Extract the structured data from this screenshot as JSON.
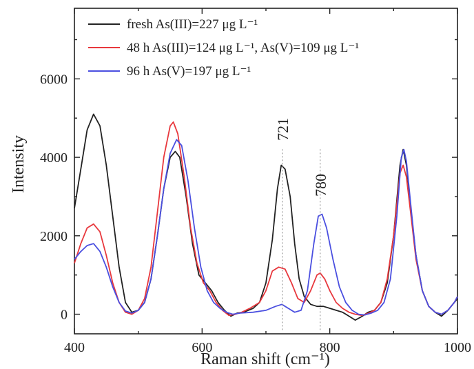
{
  "chart_data": {
    "type": "line",
    "xlabel": "Raman shift (cm⁻¹)",
    "ylabel": "Intensity",
    "xlim": [
      400,
      1000
    ],
    "ylim": [
      -500,
      7800
    ],
    "xticks": [
      400,
      600,
      800,
      1000
    ],
    "yticks": [
      0,
      2000,
      4000,
      6000
    ],
    "grid": false,
    "legend_position": "top-left",
    "annotations": [
      {
        "text": "721",
        "x": 726
      },
      {
        "text": "780",
        "x": 785
      }
    ],
    "series": [
      {
        "name": "fresh As(III)=227 μg L⁻¹",
        "color": "#222222",
        "points": [
          [
            400,
            2700
          ],
          [
            410,
            3700
          ],
          [
            420,
            4700
          ],
          [
            430,
            5100
          ],
          [
            440,
            4800
          ],
          [
            450,
            3800
          ],
          [
            460,
            2500
          ],
          [
            470,
            1200
          ],
          [
            480,
            300
          ],
          [
            490,
            50
          ],
          [
            500,
            100
          ],
          [
            510,
            300
          ],
          [
            520,
            900
          ],
          [
            530,
            2000
          ],
          [
            540,
            3200
          ],
          [
            550,
            4000
          ],
          [
            558,
            4150
          ],
          [
            565,
            4000
          ],
          [
            575,
            3000
          ],
          [
            585,
            1800
          ],
          [
            595,
            1000
          ],
          [
            605,
            800
          ],
          [
            615,
            600
          ],
          [
            625,
            300
          ],
          [
            635,
            100
          ],
          [
            645,
            -50
          ],
          [
            655,
            30
          ],
          [
            665,
            50
          ],
          [
            680,
            150
          ],
          [
            690,
            300
          ],
          [
            700,
            800
          ],
          [
            710,
            1900
          ],
          [
            718,
            3200
          ],
          [
            724,
            3800
          ],
          [
            730,
            3700
          ],
          [
            738,
            3000
          ],
          [
            745,
            1800
          ],
          [
            752,
            900
          ],
          [
            760,
            450
          ],
          [
            770,
            250
          ],
          [
            780,
            200
          ],
          [
            790,
            200
          ],
          [
            800,
            150
          ],
          [
            810,
            100
          ],
          [
            820,
            50
          ],
          [
            830,
            -50
          ],
          [
            840,
            -150
          ],
          [
            850,
            -60
          ],
          [
            860,
            50
          ],
          [
            870,
            100
          ],
          [
            880,
            300
          ],
          [
            890,
            800
          ],
          [
            900,
            2000
          ],
          [
            910,
            3800
          ],
          [
            915,
            4200
          ],
          [
            920,
            3800
          ],
          [
            928,
            2500
          ],
          [
            935,
            1500
          ],
          [
            945,
            600
          ],
          [
            955,
            200
          ],
          [
            965,
            50
          ],
          [
            975,
            -50
          ],
          [
            985,
            100
          ],
          [
            995,
            300
          ],
          [
            1000,
            400
          ]
        ]
      },
      {
        "name": "48 h As(III)=124 μg L⁻¹, As(V)=109 μg L⁻¹",
        "color": "#e8383d",
        "points": [
          [
            400,
            1300
          ],
          [
            410,
            1800
          ],
          [
            420,
            2200
          ],
          [
            430,
            2300
          ],
          [
            440,
            2100
          ],
          [
            450,
            1500
          ],
          [
            460,
            800
          ],
          [
            470,
            300
          ],
          [
            480,
            50
          ],
          [
            490,
            0
          ],
          [
            500,
            100
          ],
          [
            510,
            400
          ],
          [
            520,
            1200
          ],
          [
            530,
            2600
          ],
          [
            540,
            4000
          ],
          [
            550,
            4800
          ],
          [
            555,
            4900
          ],
          [
            562,
            4600
          ],
          [
            572,
            3500
          ],
          [
            582,
            2200
          ],
          [
            592,
            1300
          ],
          [
            602,
            800
          ],
          [
            612,
            600
          ],
          [
            622,
            300
          ],
          [
            632,
            100
          ],
          [
            642,
            -30
          ],
          [
            652,
            0
          ],
          [
            662,
            50
          ],
          [
            675,
            150
          ],
          [
            690,
            300
          ],
          [
            700,
            600
          ],
          [
            710,
            1100
          ],
          [
            720,
            1200
          ],
          [
            730,
            1150
          ],
          [
            740,
            800
          ],
          [
            750,
            400
          ],
          [
            760,
            300
          ],
          [
            770,
            600
          ],
          [
            780,
            1000
          ],
          [
            785,
            1050
          ],
          [
            792,
            900
          ],
          [
            800,
            600
          ],
          [
            810,
            300
          ],
          [
            820,
            150
          ],
          [
            830,
            50
          ],
          [
            840,
            0
          ],
          [
            850,
            -30
          ],
          [
            860,
            20
          ],
          [
            870,
            100
          ],
          [
            880,
            300
          ],
          [
            890,
            900
          ],
          [
            900,
            2000
          ],
          [
            910,
            3600
          ],
          [
            915,
            3800
          ],
          [
            920,
            3500
          ],
          [
            928,
            2400
          ],
          [
            935,
            1400
          ],
          [
            945,
            600
          ],
          [
            955,
            200
          ],
          [
            965,
            50
          ],
          [
            975,
            0
          ],
          [
            985,
            100
          ],
          [
            995,
            300
          ],
          [
            1000,
            450
          ]
        ]
      },
      {
        "name": "96 h As(V)=197 μg L⁻¹",
        "color": "#4a4fe0",
        "points": [
          [
            400,
            1400
          ],
          [
            410,
            1600
          ],
          [
            420,
            1750
          ],
          [
            430,
            1800
          ],
          [
            440,
            1600
          ],
          [
            450,
            1200
          ],
          [
            460,
            700
          ],
          [
            470,
            300
          ],
          [
            480,
            80
          ],
          [
            490,
            30
          ],
          [
            500,
            100
          ],
          [
            510,
            300
          ],
          [
            520,
            900
          ],
          [
            530,
            2000
          ],
          [
            540,
            3200
          ],
          [
            550,
            4100
          ],
          [
            560,
            4450
          ],
          [
            568,
            4300
          ],
          [
            578,
            3400
          ],
          [
            588,
            2200
          ],
          [
            598,
            1200
          ],
          [
            608,
            600
          ],
          [
            618,
            300
          ],
          [
            628,
            150
          ],
          [
            638,
            50
          ],
          [
            648,
            0
          ],
          [
            660,
            30
          ],
          [
            680,
            50
          ],
          [
            700,
            100
          ],
          [
            715,
            200
          ],
          [
            725,
            250
          ],
          [
            735,
            150
          ],
          [
            745,
            50
          ],
          [
            755,
            100
          ],
          [
            765,
            600
          ],
          [
            775,
            1800
          ],
          [
            782,
            2500
          ],
          [
            788,
            2550
          ],
          [
            795,
            2200
          ],
          [
            805,
            1400
          ],
          [
            815,
            700
          ],
          [
            825,
            300
          ],
          [
            835,
            100
          ],
          [
            845,
            0
          ],
          [
            855,
            -20
          ],
          [
            865,
            30
          ],
          [
            875,
            100
          ],
          [
            885,
            300
          ],
          [
            895,
            900
          ],
          [
            905,
            2500
          ],
          [
            912,
            4000
          ],
          [
            916,
            4200
          ],
          [
            920,
            3900
          ],
          [
            928,
            2600
          ],
          [
            935,
            1500
          ],
          [
            945,
            600
          ],
          [
            955,
            200
          ],
          [
            965,
            50
          ],
          [
            975,
            0
          ],
          [
            985,
            100
          ],
          [
            995,
            300
          ],
          [
            1000,
            450
          ]
        ]
      }
    ]
  }
}
